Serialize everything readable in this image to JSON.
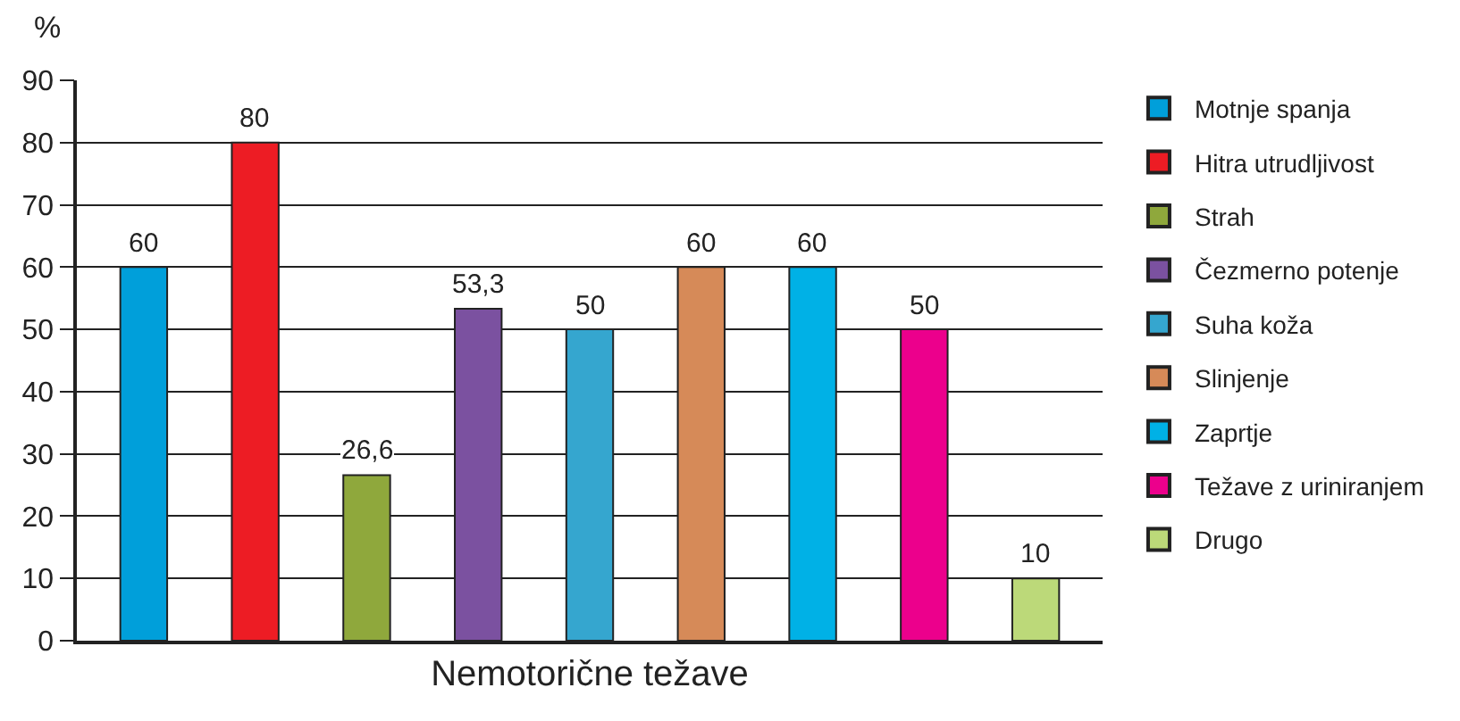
{
  "chart_data": {
    "type": "bar",
    "xlabel": "Nemotorične težave",
    "ylabel": "%",
    "categories": [
      null,
      null,
      null,
      null,
      null,
      null,
      null,
      null,
      null
    ],
    "ylim": [
      0,
      90
    ],
    "yticks": [
      0,
      10,
      20,
      30,
      40,
      50,
      60,
      70,
      80,
      90
    ],
    "grid": "y",
    "legend": "right",
    "series": [
      {
        "name": "Motnje spanja",
        "color": "#009fda",
        "values": [
          60,
          null,
          null,
          null,
          null,
          null,
          null,
          null,
          null
        ],
        "value_labels": [
          "60",
          null,
          null,
          null,
          null,
          null,
          null,
          null,
          null
        ]
      },
      {
        "name": "Hitra utrudljivost",
        "color": "#ed1c24",
        "values": [
          null,
          80,
          null,
          null,
          null,
          null,
          null,
          null,
          null
        ],
        "value_labels": [
          null,
          "80",
          null,
          null,
          null,
          null,
          null,
          null,
          null
        ]
      },
      {
        "name": "Strah",
        "color": "#8fa83c",
        "values": [
          null,
          null,
          26.6,
          null,
          null,
          null,
          null,
          null,
          null
        ],
        "value_labels": [
          null,
          null,
          "26,6",
          null,
          null,
          null,
          null,
          null,
          null
        ]
      },
      {
        "name": "Čezmerno potenje",
        "color": "#7b51a0",
        "values": [
          null,
          null,
          null,
          53.3,
          null,
          null,
          null,
          null,
          null
        ],
        "value_labels": [
          null,
          null,
          null,
          "53,3",
          null,
          null,
          null,
          null,
          null
        ]
      },
      {
        "name": "Suha koža",
        "color": "#35a6cf",
        "values": [
          null,
          null,
          null,
          null,
          50,
          null,
          null,
          null,
          null
        ],
        "value_labels": [
          null,
          null,
          null,
          null,
          "50",
          null,
          null,
          null,
          null
        ]
      },
      {
        "name": "Slinjenje",
        "color": "#d68a58",
        "values": [
          null,
          null,
          null,
          null,
          null,
          60,
          null,
          null,
          null
        ],
        "value_labels": [
          null,
          null,
          null,
          null,
          null,
          "60",
          null,
          null,
          null
        ]
      },
      {
        "name": "Zaprtje",
        "color": "#00b1e6",
        "values": [
          null,
          null,
          null,
          null,
          null,
          null,
          60,
          null,
          null
        ],
        "value_labels": [
          null,
          null,
          null,
          null,
          null,
          null,
          "60",
          null,
          null
        ]
      },
      {
        "name": "Težave z uriniranjem",
        "color": "#ec008c",
        "values": [
          null,
          null,
          null,
          null,
          null,
          null,
          null,
          50,
          null
        ],
        "value_labels": [
          null,
          null,
          null,
          null,
          null,
          null,
          null,
          "50",
          null
        ]
      },
      {
        "name": "Drugo",
        "color": "#bcd979",
        "values": [
          null,
          null,
          null,
          null,
          null,
          null,
          null,
          null,
          10
        ],
        "value_labels": [
          null,
          null,
          null,
          null,
          null,
          null,
          null,
          null,
          "10"
        ]
      }
    ]
  }
}
